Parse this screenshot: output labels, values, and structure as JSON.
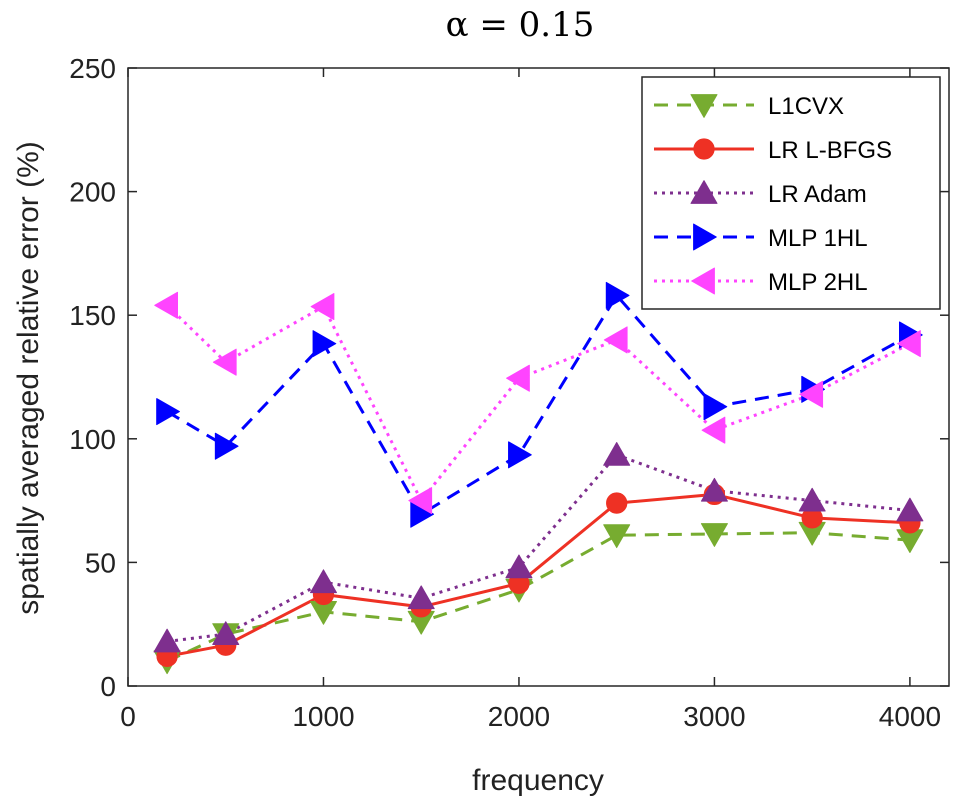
{
  "chart_data": {
    "type": "line",
    "title": "α = 0.15",
    "xlabel": "frequency",
    "ylabel": "spatially averaged relative error (%)",
    "xlim": [
      0,
      4200
    ],
    "ylim": [
      0,
      250
    ],
    "xticks": [
      0,
      1000,
      2000,
      3000,
      4000
    ],
    "yticks": [
      0,
      50,
      100,
      150,
      200,
      250
    ],
    "grid": false,
    "legend_position": "top-right",
    "x": [
      200,
      500,
      1000,
      1500,
      2000,
      2500,
      3000,
      3500,
      4000
    ],
    "series": [
      {
        "name": "L1CVX",
        "color": "#77ac30",
        "dash": "dashed",
        "marker": "triangle-down",
        "values": [
          10,
          21,
          30,
          26,
          39,
          61,
          61.5,
          62,
          59
        ]
      },
      {
        "name": "LR L-BFGS",
        "color": "#ee3124",
        "dash": "solid",
        "marker": "circle",
        "values": [
          12,
          16.5,
          37,
          32,
          41.5,
          74,
          77.5,
          68,
          66
        ]
      },
      {
        "name": "LR Adam",
        "color": "#7e2f8e",
        "dash": "dotted",
        "marker": "triangle-up",
        "values": [
          18,
          21,
          42,
          35.5,
          48,
          93.5,
          79,
          75,
          71
        ]
      },
      {
        "name": "MLP 1HL",
        "color": "#0000ff",
        "dash": "dashed",
        "marker": "triangle-right",
        "values": [
          111,
          97,
          138.5,
          69.5,
          93.5,
          158,
          113,
          120,
          142
        ]
      },
      {
        "name": "MLP 2HL",
        "color": "#ff44ff",
        "dash": "dotted",
        "marker": "triangle-left",
        "values": [
          154,
          131,
          153.5,
          75,
          124.5,
          140,
          103.5,
          118,
          138.5
        ]
      }
    ]
  }
}
